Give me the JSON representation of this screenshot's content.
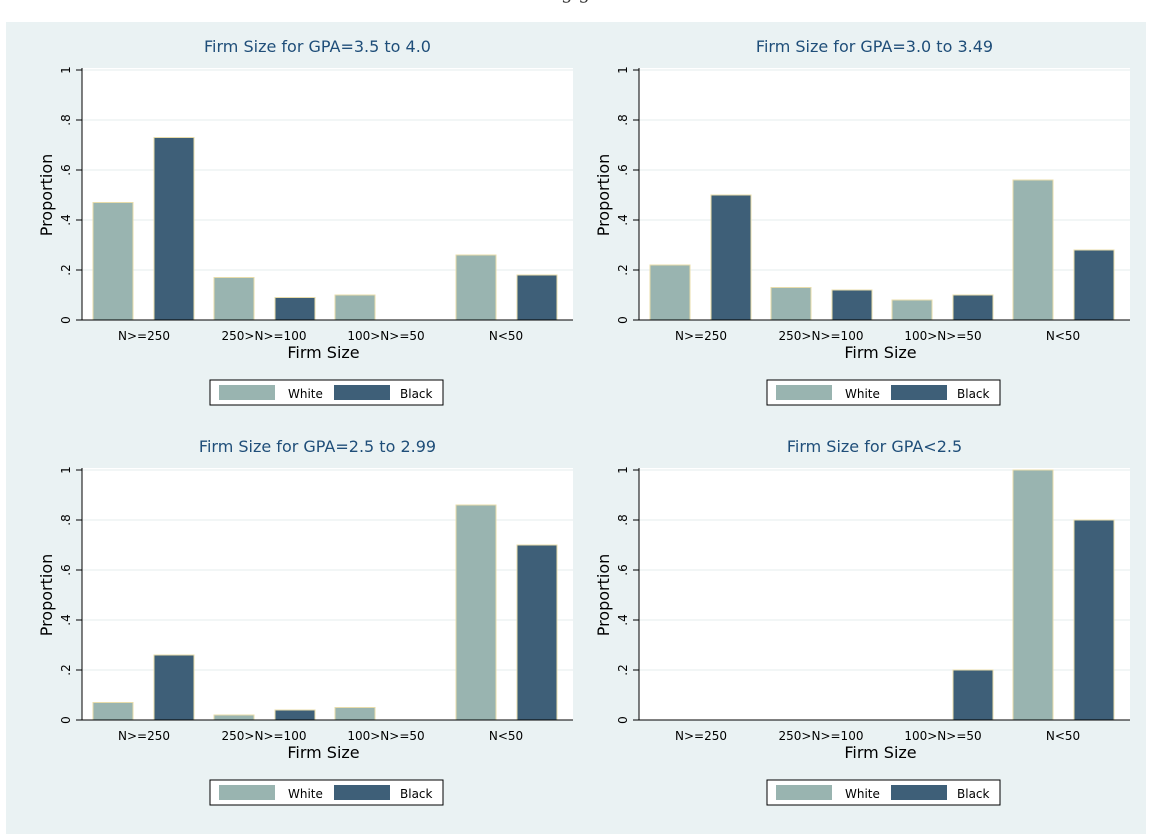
{
  "figure": {
    "cut_off_title": "g                                                                                     g"
  },
  "legend": {
    "white_label": "White",
    "black_label": "Black"
  },
  "colors": {
    "background": "#eaf2f3",
    "plot_bg": "#ffffff",
    "white_bar": "#99b4b0",
    "black_bar": "#3e5f78",
    "bar_edge": "#e8dcaa",
    "title": "#1f4e79",
    "grid": "#e6ecec"
  },
  "chart_data": [
    {
      "type": "bar",
      "title": "Firm Size for GPA=3.5 to 4.0",
      "xlabel": "Firm Size",
      "ylabel": "Proportion",
      "categories": [
        "N>=250",
        "250>N>=100",
        "100>N>=50",
        "N<50"
      ],
      "series": [
        {
          "name": "White",
          "values": [
            0.47,
            0.17,
            0.1,
            0.26
          ]
        },
        {
          "name": "Black",
          "values": [
            0.73,
            0.09,
            0,
            0.18
          ]
        }
      ],
      "ylim": [
        0,
        1
      ],
      "yticks": [
        0,
        0.2,
        0.4,
        0.6,
        0.8,
        1
      ],
      "ytick_labels": [
        "0",
        ".2",
        ".4",
        ".6",
        ".8",
        "1"
      ],
      "grid": true,
      "legend_position": "bottom"
    },
    {
      "type": "bar",
      "title": "Firm Size for GPA=3.0 to 3.49",
      "xlabel": "Firm Size",
      "ylabel": "Proportion",
      "categories": [
        "N>=250",
        "250>N>=100",
        "100>N>=50",
        "N<50"
      ],
      "series": [
        {
          "name": "White",
          "values": [
            0.22,
            0.13,
            0.08,
            0.56
          ]
        },
        {
          "name": "Black",
          "values": [
            0.5,
            0.12,
            0.1,
            0.28
          ]
        }
      ],
      "ylim": [
        0,
        1
      ],
      "yticks": [
        0,
        0.2,
        0.4,
        0.6,
        0.8,
        1
      ],
      "ytick_labels": [
        "0",
        ".2",
        ".4",
        ".6",
        ".8",
        "1"
      ],
      "grid": true,
      "legend_position": "bottom"
    },
    {
      "type": "bar",
      "title": "Firm Size for GPA=2.5 to 2.99",
      "xlabel": "Firm Size",
      "ylabel": "Proportion",
      "categories": [
        "N>=250",
        "250>N>=100",
        "100>N>=50",
        "N<50"
      ],
      "series": [
        {
          "name": "White",
          "values": [
            0.07,
            0.02,
            0.05,
            0.86
          ]
        },
        {
          "name": "Black",
          "values": [
            0.26,
            0.04,
            0,
            0.7
          ]
        }
      ],
      "ylim": [
        0,
        1
      ],
      "yticks": [
        0,
        0.2,
        0.4,
        0.6,
        0.8,
        1
      ],
      "ytick_labels": [
        "0",
        ".2",
        ".4",
        ".6",
        ".8",
        "1"
      ],
      "grid": true,
      "legend_position": "bottom"
    },
    {
      "type": "bar",
      "title": "Firm Size for GPA<2.5",
      "xlabel": "Firm Size",
      "ylabel": "Proportion",
      "categories": [
        "N>=250",
        "250>N>=100",
        "100>N>=50",
        "N<50"
      ],
      "series": [
        {
          "name": "White",
          "values": [
            0,
            0,
            0,
            1.0
          ]
        },
        {
          "name": "Black",
          "values": [
            0,
            0,
            0.2,
            0.8
          ]
        }
      ],
      "ylim": [
        0,
        1
      ],
      "yticks": [
        0,
        0.2,
        0.4,
        0.6,
        0.8,
        1
      ],
      "ytick_labels": [
        "0",
        ".2",
        ".4",
        ".6",
        ".8",
        "1"
      ],
      "grid": true,
      "legend_position": "bottom"
    }
  ]
}
